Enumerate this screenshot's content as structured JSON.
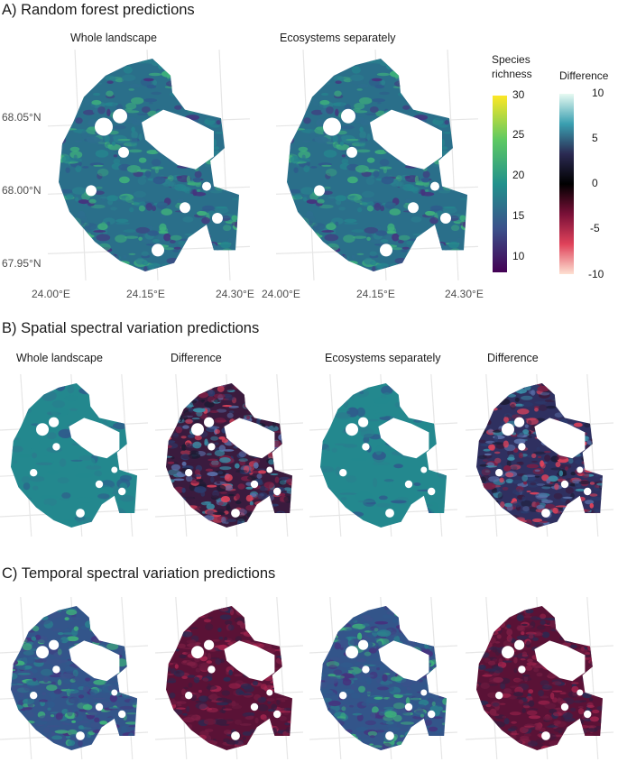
{
  "panels": {
    "a": {
      "title": "A) Random forest predictions",
      "subtitles": [
        "Whole landscape",
        "Ecosystems separately"
      ]
    },
    "b": {
      "title": "B) Spatial spectral variation predictions",
      "subtitles": [
        "Whole landscape",
        "Difference",
        "Ecosystems separately",
        "Difference"
      ]
    },
    "c": {
      "title": "C) Temporal spectral variation predictions"
    }
  },
  "axes": {
    "y_ticks": [
      "68.05°N",
      "68.00°N",
      "67.95°N"
    ],
    "x_ticks": [
      "24.00°E",
      "24.15°E",
      "24.30°E"
    ]
  },
  "chart_data": [
    {
      "type": "heatmap",
      "title": "A) Random forest predictions",
      "maps": [
        "Whole landscape",
        "Ecosystems separately"
      ],
      "x_tick_labels": [
        "24.00°E",
        "24.15°E",
        "24.30°E"
      ],
      "y_tick_labels": [
        "68.05°N",
        "68.00°N",
        "67.95°N"
      ],
      "colorbar": {
        "label": "Species richness",
        "ticks": [
          10,
          15,
          20,
          25,
          30
        ],
        "range": [
          8,
          30
        ],
        "palette": "viridis"
      }
    },
    {
      "type": "heatmap",
      "title": "B) Spatial spectral variation predictions",
      "maps": [
        "Whole landscape",
        "Difference",
        "Ecosystems separately",
        "Difference"
      ]
    },
    {
      "type": "heatmap",
      "title": "C) Temporal spectral variation predictions",
      "maps": [
        "",
        "",
        "",
        ""
      ]
    }
  ],
  "legends": {
    "richness": {
      "title_line1": "Species",
      "title_line2": "richness",
      "ticks": [
        "30",
        "25",
        "20",
        "15",
        "10"
      ],
      "colors": [
        "#fde725",
        "#5ec962",
        "#21918c",
        "#3b528b",
        "#440154"
      ]
    },
    "difference": {
      "title": "Difference",
      "ticks": [
        "10",
        "5",
        "0",
        "-5",
        "-10"
      ],
      "colors": [
        "#e7faf2",
        "#3a9fb0",
        "#2b2a52",
        "#000000",
        "#7a1038",
        "#e0425a",
        "#fde0d2"
      ]
    }
  },
  "colors": {
    "land_teal": "#2a7f8e",
    "land_blue": "#2f5a8c",
    "land_green": "#3fb37b",
    "land_dark": "#3a1b3e",
    "land_red": "#7e1f45",
    "water": "#ffffff"
  }
}
